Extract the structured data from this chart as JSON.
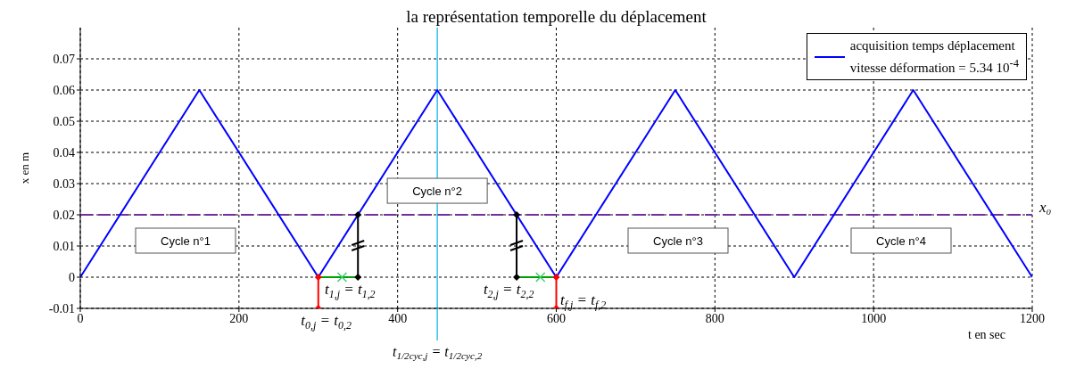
{
  "chart_data": {
    "type": "line",
    "title": "la représentation temporelle du déplacement",
    "xlabel": "t en sec",
    "ylabel": "x en m",
    "xlim": [
      0,
      1200
    ],
    "xticks": [
      0,
      200,
      400,
      600,
      800,
      1000,
      1200
    ],
    "ylim": [
      -0.01,
      0.08
    ],
    "yticks": [
      -0.01,
      0,
      0.01,
      0.02,
      0.03,
      0.04,
      0.05,
      0.06,
      0.07
    ],
    "grid": true,
    "legend": "top right",
    "series": [
      {
        "name": "acquisition temps déplacement\nvitesse déformation = 5.34 10$^{-4}$",
        "color": "#0000ff",
        "marker": "none",
        "x": [
          0,
          150,
          300,
          450,
          600,
          750,
          900,
          1050,
          1200
        ],
        "values": [
          0,
          0.06,
          0,
          0.06,
          0,
          0.06,
          0,
          0.06,
          0
        ]
      },
      {
        "color": "#ff0000",
        "marker": "diamond",
        "x": [
          300,
          300
        ],
        "values": [
          -0.01,
          0
        ]
      },
      {
        "color": "#ff0000",
        "marker": "diamond",
        "x": [
          600,
          600
        ],
        "values": [
          -0.01,
          0
        ]
      },
      {
        "color": "#00a000",
        "marker": "none",
        "x": [
          300,
          350
        ],
        "values": [
          0,
          0
        ]
      },
      {
        "color": "#00a000",
        "marker": "none",
        "x": [
          550,
          600
        ],
        "values": [
          0,
          0
        ]
      },
      {
        "type": "scatter",
        "color": "#33cc66",
        "marker": "cross",
        "x": [
          330,
          580
        ],
        "values": [
          0,
          0
        ]
      },
      {
        "color": "#000000",
        "marker": "diamond",
        "x": [
          350,
          350
        ],
        "values": [
          0,
          0.02
        ]
      },
      {
        "color": "#000000",
        "marker": "diamond",
        "x": [
          550,
          550
        ],
        "values": [
          0,
          0.02
        ]
      }
    ],
    "ref_lines": [
      {
        "axis": "y",
        "value": 0.02,
        "label": "x₀",
        "color": "#7030a0",
        "line_style": "dashed"
      },
      {
        "axis": "x",
        "value": 450,
        "label": "t$_{1/2cyc,j}$ = t$_{1/2cyc,2}$",
        "color": "#00b0f0",
        "line_style": "solid"
      }
    ],
    "annotations": [
      "Cycle n°1",
      {
        "text": "Cycle n°2",
        "x": 450,
        "y": 0.0277
      },
      "Cycle n°3",
      "Cycle n°4",
      {
        "text": "t$_{0,j}$ = t$_{0,2}$",
        "x": 310,
        "y": -0.01
      },
      {
        "text": "t$_{1,j}$ = t$_{1,2}$",
        "x": 340,
        "y": 0
      },
      {
        "text": "t$_{2,j}$ = t$_{2,2}$",
        "x": 540,
        "y": 0
      },
      "t$_{f,j}$ = t$_{f,2}$"
    ]
  }
}
